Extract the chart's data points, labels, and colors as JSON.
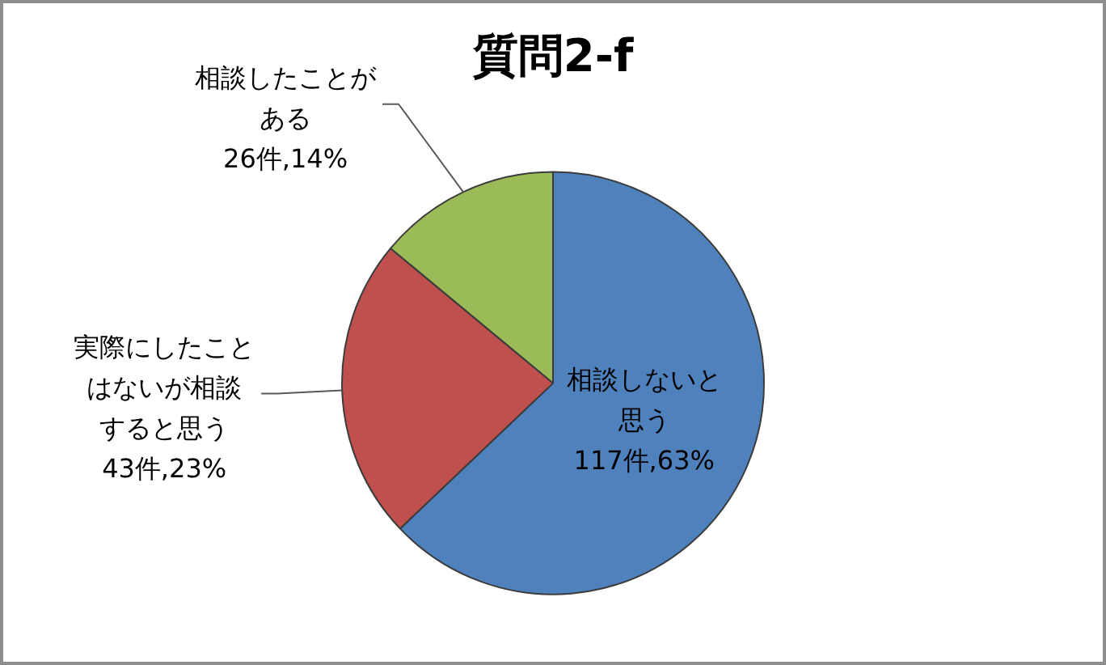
{
  "chart_data": {
    "type": "pie",
    "title": "質問2-f",
    "categories": [
      "相談しないと思う",
      "実際にしたことはないが相談すると思う",
      "相談したことがある"
    ],
    "values": [
      117,
      43,
      26
    ],
    "colors": [
      "#4f81bd",
      "#c0504d",
      "#9bbb59"
    ],
    "value_labels": [
      "117件,63%",
      "43件,23%",
      "26件,14%"
    ]
  }
}
